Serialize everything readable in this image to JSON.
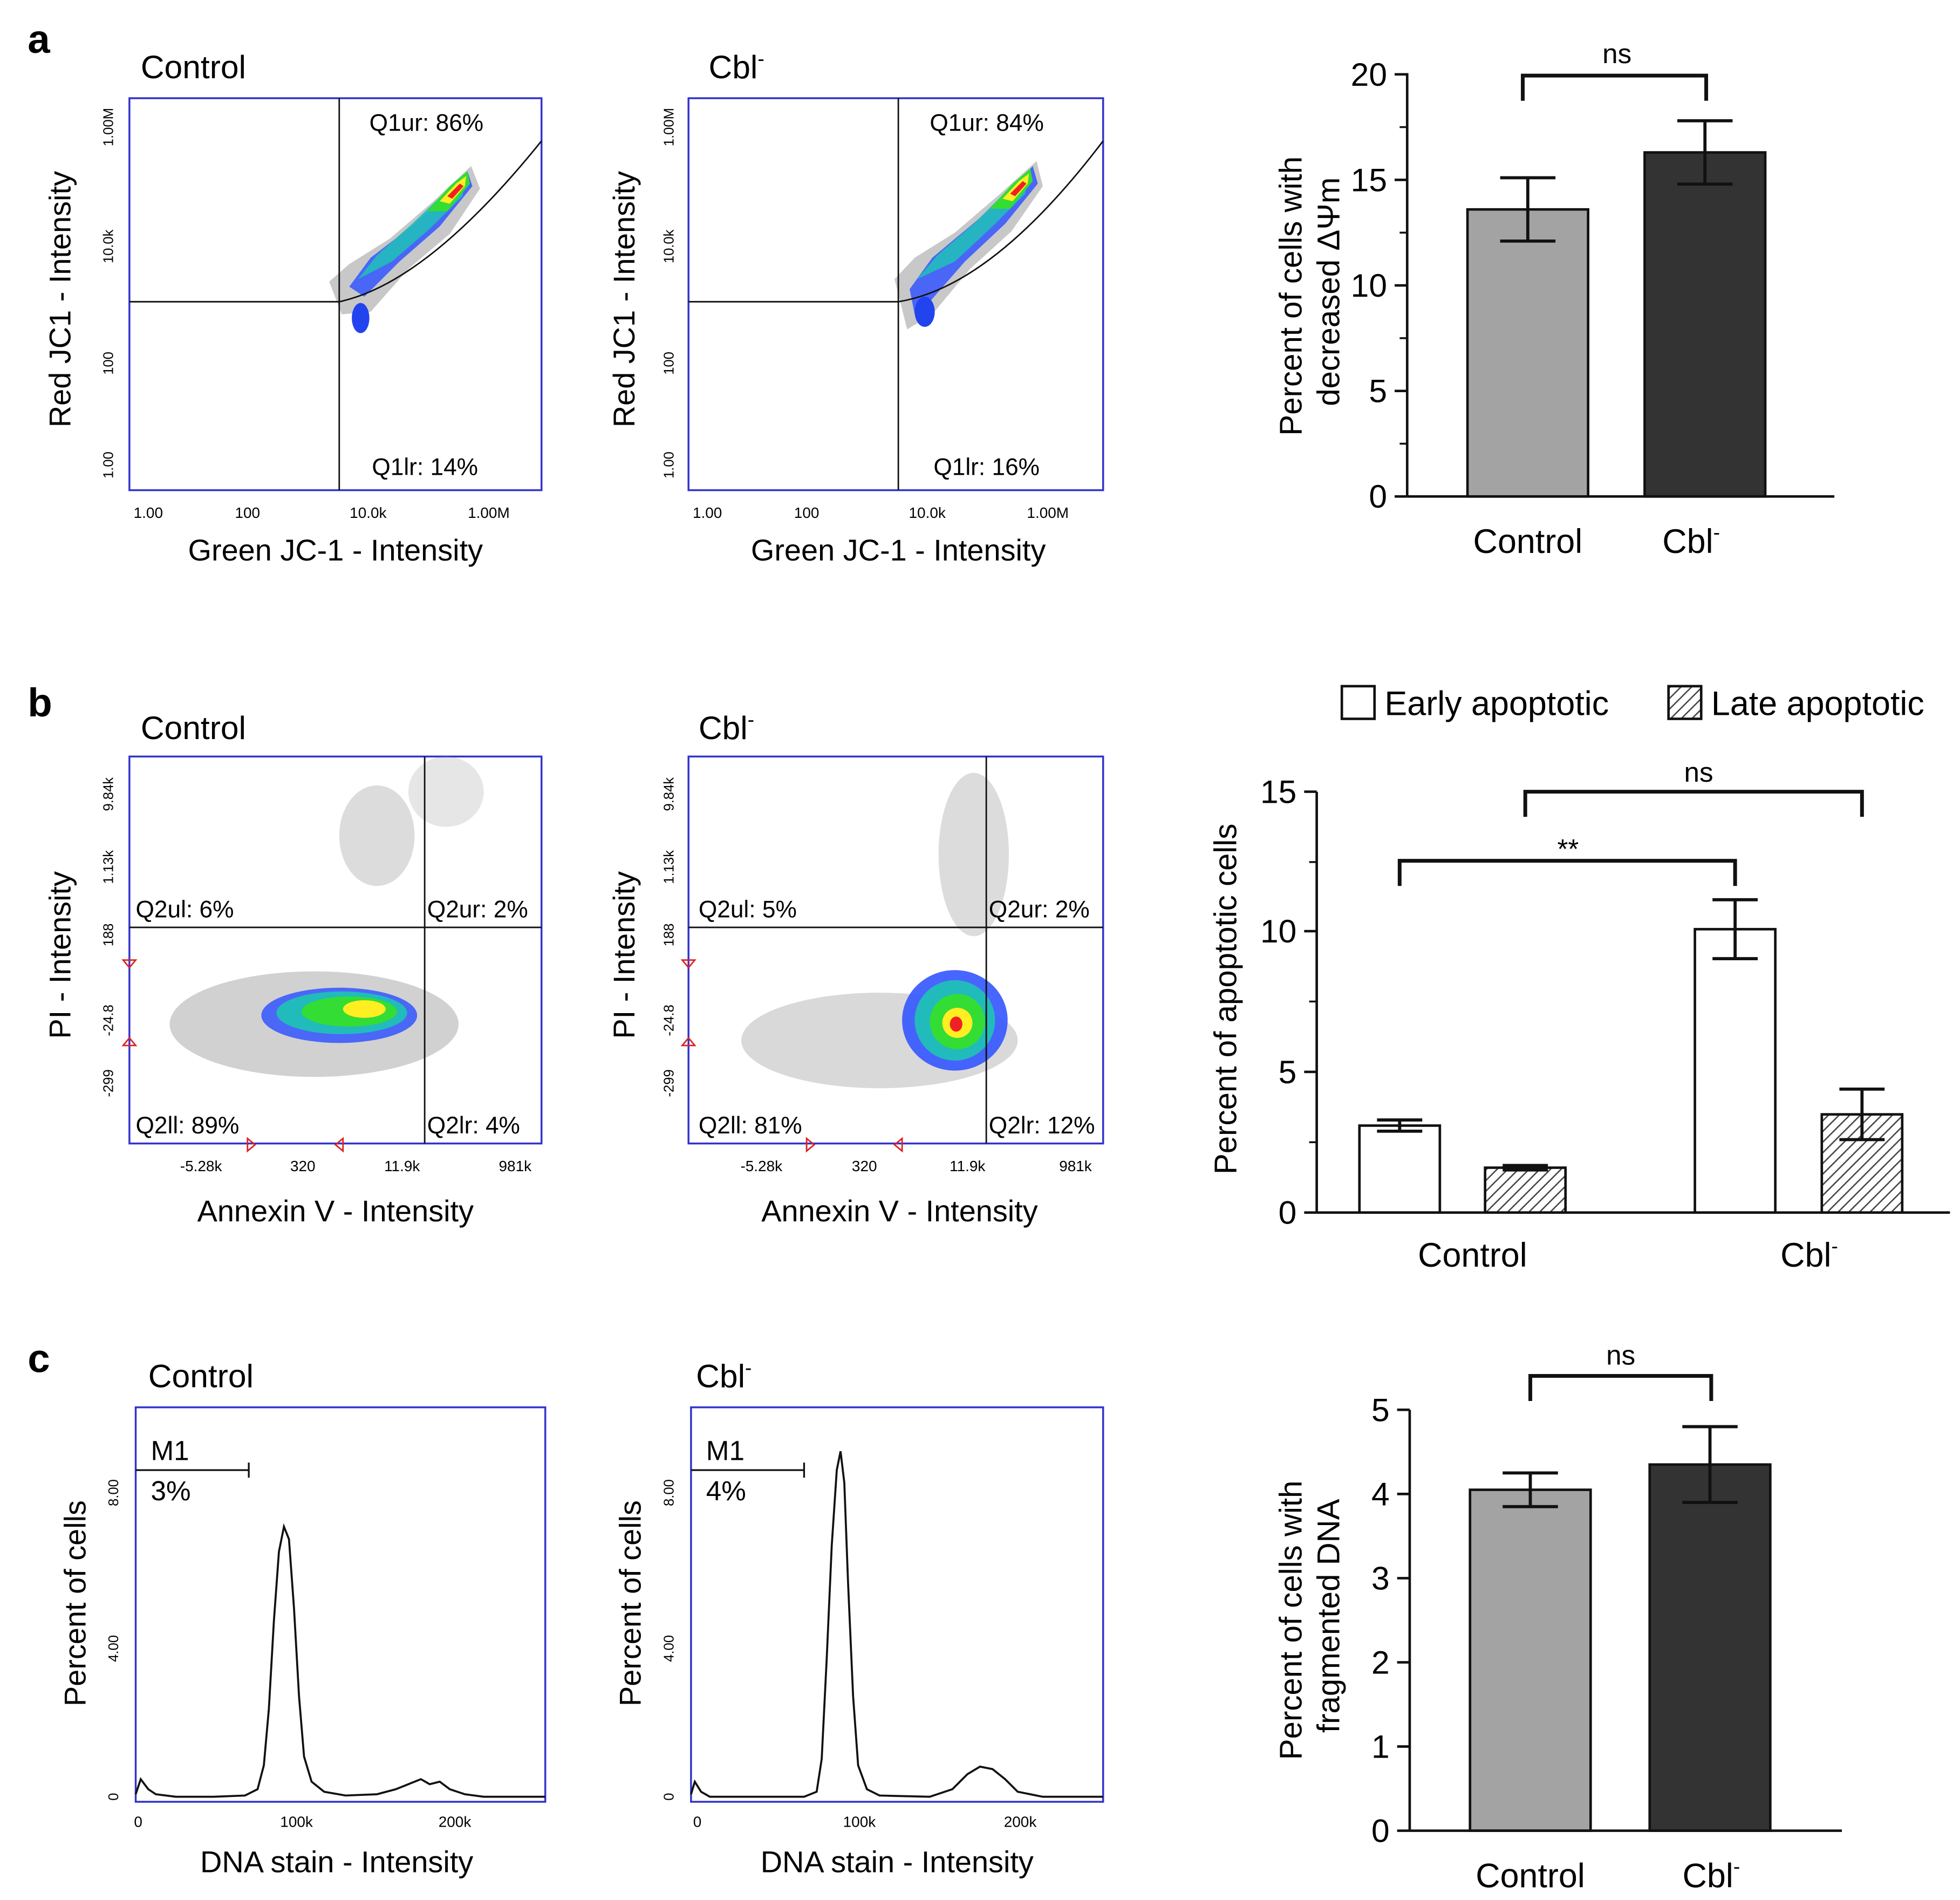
{
  "panels": {
    "a": "a",
    "b": "b",
    "c": "c"
  },
  "cytometry": {
    "a_control": {
      "title": "Control",
      "xlabel": "Green JC-1 - Intensity",
      "ylabel": "Red JC1 - Intensity",
      "xticks": [
        "1.00",
        "100",
        "10.0k",
        "1.00M"
      ],
      "yticks": [
        "1.00",
        "100",
        "10.0k",
        "1.00M"
      ],
      "quadrants": {
        "ur": "Q1ur: 86%",
        "lr": "Q1lr: 14%"
      }
    },
    "a_cbl": {
      "title": "Cbl",
      "title_sup": "-",
      "xlabel": "Green JC-1 - Intensity",
      "ylabel": "Red JC1 - Intensity",
      "xticks": [
        "1.00",
        "100",
        "10.0k",
        "1.00M"
      ],
      "yticks": [
        "1.00",
        "100",
        "10.0k",
        "1.00M"
      ],
      "quadrants": {
        "ur": "Q1ur: 84%",
        "lr": "Q1lr: 16%"
      }
    },
    "b_control": {
      "title": "Control",
      "xlabel": "Annexin V - Intensity",
      "ylabel": "PI - Intensity",
      "xticks": [
        "-5.28k",
        "320",
        "11.9k",
        "981k"
      ],
      "yticks": [
        "-299",
        "-24.8",
        "188",
        "1.13k",
        "9.84k"
      ],
      "quadrants": {
        "ul": "Q2ul: 6%",
        "ur": "Q2ur: 2%",
        "ll": "Q2ll: 89%",
        "lr": "Q2lr: 4%"
      }
    },
    "b_cbl": {
      "title": "Cbl",
      "title_sup": "-",
      "xlabel": "Annexin V - Intensity",
      "ylabel": "PI - Intensity",
      "xticks": [
        "-5.28k",
        "320",
        "11.9k",
        "981k"
      ],
      "yticks": [
        "-299",
        "-24.8",
        "188",
        "1.13k",
        "9.84k"
      ],
      "quadrants": {
        "ul": "Q2ul: 5%",
        "ur": "Q2ur: 2%",
        "ll": "Q2ll: 81%",
        "lr": "Q2lr: 12%"
      }
    },
    "c_control": {
      "title": "Control",
      "xlabel": "DNA stain - Intensity",
      "ylabel": "Percent of cells",
      "xticks": [
        "0",
        "100k",
        "200k"
      ],
      "yticks": [
        "0",
        "4.00",
        "8.00"
      ],
      "marker": "M1",
      "marker_pct": "3%"
    },
    "c_cbl": {
      "title": "Cbl",
      "title_sup": "-",
      "xlabel": "DNA stain - Intensity",
      "ylabel": "Percent of cells",
      "xticks": [
        "0",
        "100k",
        "200k"
      ],
      "yticks": [
        "0",
        "4.00",
        "8.00"
      ],
      "marker": "M1",
      "marker_pct": "4%"
    }
  },
  "bars": {
    "a": {
      "ylabel_line1": "Percent of cells with",
      "ylabel_line2": "decreased ΔΨm",
      "sig": "ns",
      "cat1": "Control",
      "cat2": "Cbl",
      "cat2_sup": "-",
      "yticks": [
        "0",
        "5",
        "10",
        "15",
        "20"
      ]
    },
    "b": {
      "ylabel": "Percent of apoptotic cells",
      "legend_early": "Early apoptotic",
      "legend_late": "Late apoptotic",
      "sig1": "**",
      "sig2": "ns",
      "cat1": "Control",
      "cat2": "Cbl",
      "cat2_sup": "-",
      "yticks": [
        "0",
        "5",
        "10",
        "15"
      ]
    },
    "c": {
      "ylabel_line1": "Percent of cells with",
      "ylabel_line2": "fragmented DNA",
      "sig": "ns",
      "cat1": "Control",
      "cat2": "Cbl",
      "cat2_sup": "-",
      "yticks": [
        "0",
        "1",
        "2",
        "3",
        "4",
        "5"
      ]
    }
  },
  "chart_data": [
    {
      "type": "bar",
      "id": "a",
      "categories": [
        "Control",
        "Cbl-"
      ],
      "values": [
        13.6,
        16.3
      ],
      "errors": [
        1.5,
        1.5
      ],
      "colors": [
        "#a3a3a3",
        "#333333"
      ],
      "ylabel": "Percent of cells with decreased ΔΨm",
      "ylim": [
        0,
        20
      ],
      "significance": [
        {
          "from": 0,
          "to": 1,
          "label": "ns"
        }
      ]
    },
    {
      "type": "bar",
      "id": "b",
      "categories": [
        "Control",
        "Cbl-"
      ],
      "series": [
        {
          "name": "Early apoptotic",
          "values": [
            3.1,
            10.1
          ],
          "errors": [
            0.2,
            1.05
          ],
          "fill": "white"
        },
        {
          "name": "Late apoptotic",
          "values": [
            1.6,
            3.5
          ],
          "errors": [
            0.08,
            0.9
          ],
          "fill": "hatched"
        }
      ],
      "ylabel": "Percent of apoptotic cells",
      "ylim": [
        0,
        15
      ],
      "significance": [
        {
          "from": "Control Early apoptotic",
          "to": "Cbl- Early apoptotic",
          "label": "**"
        },
        {
          "from": "Control Late apoptotic",
          "to": "Cbl- Late apoptotic",
          "label": "ns"
        }
      ]
    },
    {
      "type": "bar",
      "id": "c",
      "categories": [
        "Control",
        "Cbl-"
      ],
      "values": [
        4.05,
        4.35
      ],
      "errors": [
        0.2,
        0.45
      ],
      "colors": [
        "#a3a3a3",
        "#333333"
      ],
      "ylabel": "Percent of cells with fragmented DNA",
      "ylim": [
        0,
        5
      ],
      "significance": [
        {
          "from": 0,
          "to": 1,
          "label": "ns"
        }
      ]
    }
  ]
}
